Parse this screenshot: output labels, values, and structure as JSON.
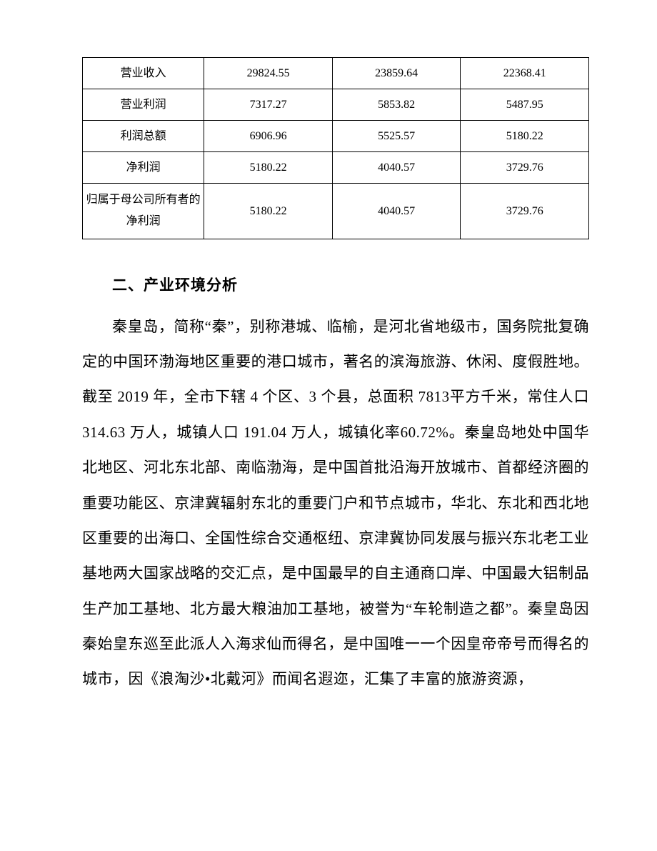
{
  "table": {
    "type": "table",
    "border_color": "#000000",
    "background_color": "#ffffff",
    "text_color": "#000000",
    "font_size_pt": 12,
    "column_widths_pct": [
      24,
      25.3,
      25.3,
      25.3
    ],
    "alignment": "center",
    "rows": [
      {
        "label": "营业收入",
        "c1": "29824.55",
        "c2": "23859.64",
        "c3": "22368.41"
      },
      {
        "label": "营业利润",
        "c1": "7317.27",
        "c2": "5853.82",
        "c3": "5487.95"
      },
      {
        "label": "利润总额",
        "c1": "6906.96",
        "c2": "5525.57",
        "c3": "5180.22"
      },
      {
        "label": "净利润",
        "c1": "5180.22",
        "c2": "4040.57",
        "c3": "3729.76"
      },
      {
        "label": "归属于母公司所有者的净利润",
        "c1": "5180.22",
        "c2": "4040.57",
        "c3": "3729.76"
      }
    ]
  },
  "heading": "二、产业环境分析",
  "paragraph": "秦皇岛，简称“秦”，别称港城、临榆，是河北省地级市，国务院批复确定的中国环渤海地区重要的港口城市，著名的滨海旅游、休闲、度假胜地。截至 2019 年，全市下辖 4 个区、3 个县，总面积 7813平方千米，常住人口 314.63 万人，城镇人口 191.04 万人，城镇化率60.72%。秦皇岛地处中国华北地区、河北东北部、南临渤海，是中国首批沿海开放城市、首都经济圈的重要功能区、京津冀辐射东北的重要门户和节点城市，华北、东北和西北地区重要的出海口、全国性综合交通枢纽、京津冀协同发展与振兴东北老工业基地两大国家战略的交汇点，是中国最早的自主通商口岸、中国最大铝制品生产加工基地、北方最大粮油加工基地，被誉为“车轮制造之都”。秦皇岛因秦始皇东巡至此派人入海求仙而得名，是中国唯一一个因皇帝帝号而得名的城市，因《浪淘沙•北戴河》而闻名遐迩，汇集了丰富的旅游资源，",
  "styles": {
    "page_background": "#ffffff",
    "body_font_family": "SimSun",
    "heading_font_family": "SimHei",
    "body_font_size_pt": 16,
    "heading_font_size_pt": 16,
    "heading_font_weight": "bold",
    "line_height": 2.35,
    "text_indent_em": 2
  }
}
